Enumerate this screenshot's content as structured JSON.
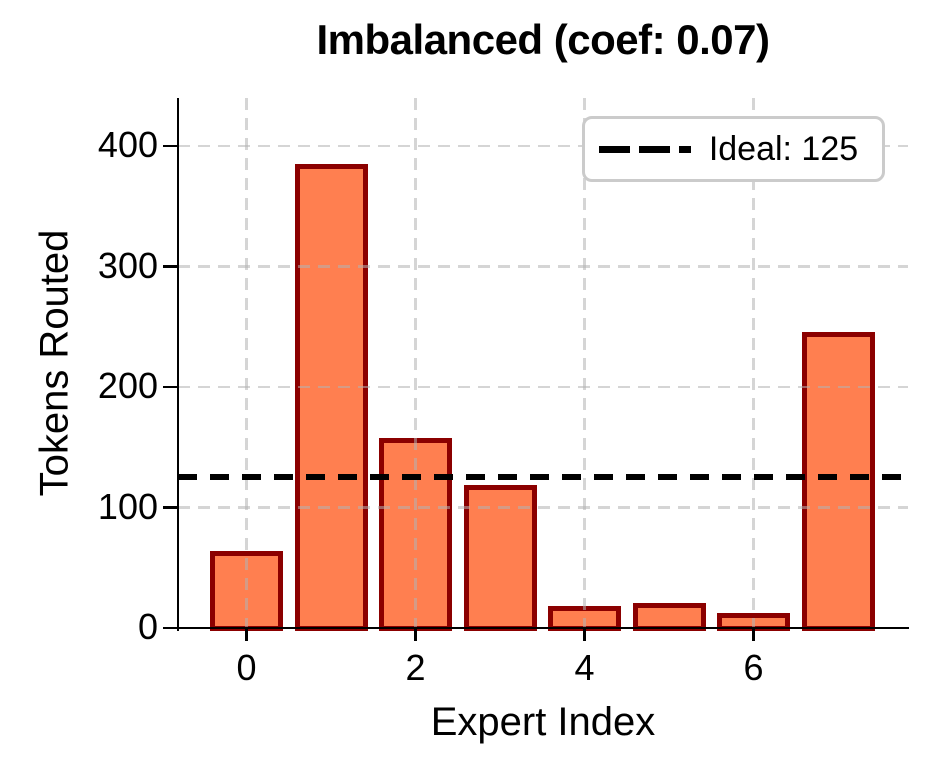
{
  "figure": {
    "background": "#FFFFFF"
  },
  "chart_data": {
    "type": "bar",
    "title": "Imbalanced (coef: 0.07)",
    "xlabel": "Expert Index",
    "ylabel": "Tokens Routed",
    "categories": [
      0,
      1,
      2,
      3,
      4,
      5,
      6,
      7
    ],
    "values": [
      62,
      383,
      156,
      117,
      16,
      19,
      10,
      244
    ],
    "xticks": [
      0,
      2,
      4,
      6
    ],
    "yticks": [
      0,
      100,
      200,
      300,
      400
    ],
    "ylim": [
      0,
      440
    ],
    "grid": "dashed light-gray gridlines at x ticks and y ticks, drawn over bars with transparency",
    "legend": {
      "position": "upper right",
      "entries": [
        {
          "label": "Ideal: 125",
          "marker": "black dashed line"
        }
      ]
    },
    "reference_line": {
      "value": 125,
      "style": "dashed",
      "color": "#000000"
    },
    "colors": {
      "bar_fill": "#FF7F50",
      "bar_edge": "#8B0000",
      "grid": "#DCDCDC",
      "text": "#000000",
      "legend_border": "#CBCBCB"
    }
  }
}
